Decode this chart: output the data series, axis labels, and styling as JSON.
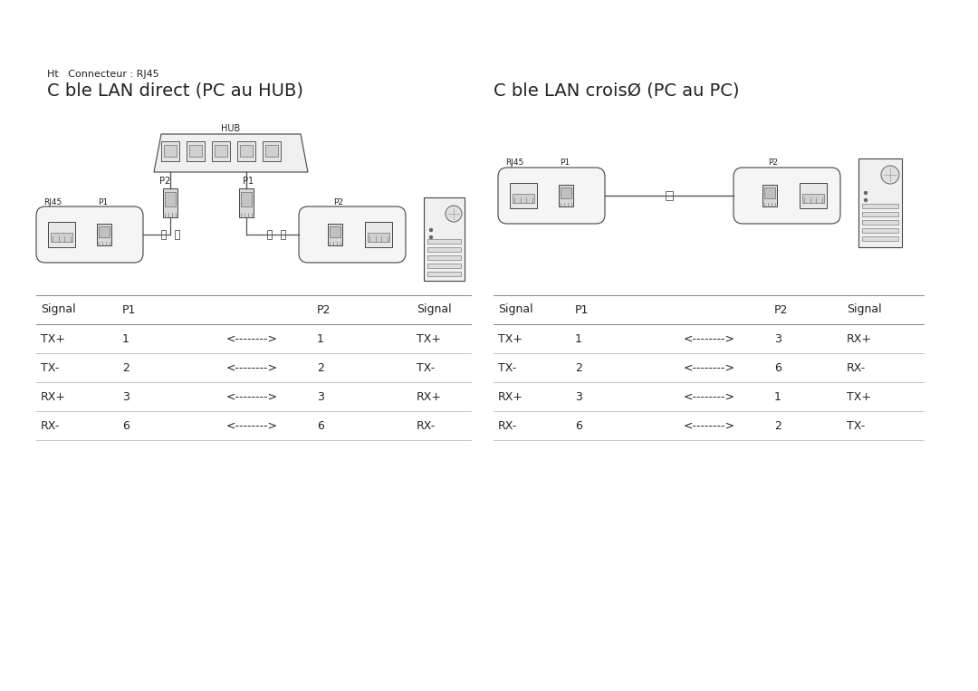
{
  "bg_color": "#ffffff",
  "left_title_small": "Ht   Connecteur : RJ45",
  "left_title": "C ble LAN direct (PC au HUB)",
  "right_title": "C ble LAN croisØ (PC au PC)",
  "left_table_headers": [
    "Signal",
    "P1",
    "",
    "P2",
    "Signal"
  ],
  "left_table_rows": [
    [
      "TX+",
      "1",
      "<-------->",
      "1",
      "TX+"
    ],
    [
      "TX-",
      "2",
      "<-------->",
      "2",
      "TX-"
    ],
    [
      "RX+",
      "3",
      "<-------->",
      "3",
      "RX+"
    ],
    [
      "RX-",
      "6",
      "<-------->",
      "6",
      "RX-"
    ]
  ],
  "right_table_headers": [
    "Signal",
    "P1",
    "",
    "P2",
    "Signal"
  ],
  "right_table_rows": [
    [
      "TX+",
      "1",
      "<-------->",
      "3",
      "RX+"
    ],
    [
      "TX-",
      "2",
      "<-------->",
      "6",
      "RX-"
    ],
    [
      "RX+",
      "3",
      "<-------->",
      "1",
      "TX+"
    ],
    [
      "RX-",
      "6",
      "<-------->",
      "2",
      "TX-"
    ]
  ],
  "line_color": "#bbbbbb",
  "text_color": "#222222",
  "font_size_title": 14,
  "font_size_small": 8,
  "font_size_table": 9
}
